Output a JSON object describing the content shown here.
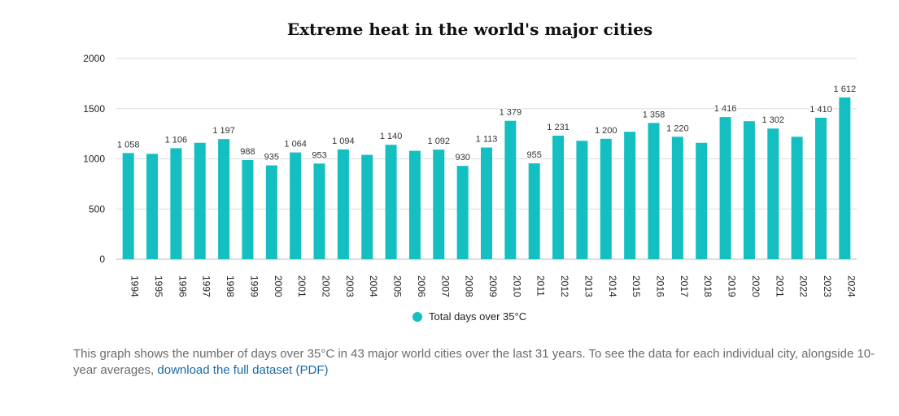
{
  "chart_data": {
    "type": "bar",
    "title": "Extreme heat in the world's major cities",
    "xlabel": "",
    "ylabel": "",
    "ylim": [
      0,
      2000
    ],
    "yticks": [
      "0",
      "500",
      "1000",
      "1500",
      "2000"
    ],
    "categories": [
      "1994",
      "1995",
      "1996",
      "1997",
      "1998",
      "1999",
      "2000",
      "2001",
      "2002",
      "2003",
      "2004",
      "2005",
      "2006",
      "2007",
      "2008",
      "2009",
      "2010",
      "2011",
      "2012",
      "2013",
      "2014",
      "2015",
      "2016",
      "2017",
      "2018",
      "2019",
      "2020",
      "2021",
      "2022",
      "2023",
      "2024"
    ],
    "values": [
      1058,
      1050,
      1106,
      1160,
      1197,
      988,
      935,
      1064,
      953,
      1094,
      1040,
      1140,
      1080,
      1092,
      930,
      1113,
      1379,
      955,
      1231,
      1180,
      1200,
      1270,
      1358,
      1220,
      1160,
      1416,
      1375,
      1302,
      1220,
      1410,
      1612
    ],
    "data_labels": [
      "1 058",
      "",
      "1 106",
      "",
      "1 197",
      "988",
      "935",
      "1 064",
      "953",
      "1 094",
      "",
      "1 140",
      "",
      "1 092",
      "930",
      "1 113",
      "1 379",
      "955",
      "1 231",
      "",
      "1 200",
      "",
      "1 358",
      "1 220",
      "",
      "1 416",
      "",
      "1 302",
      "",
      "1 410",
      "1 612"
    ],
    "series_name": "Total days over 35°C",
    "color": "#13bfc0",
    "grid": true,
    "legend_position": "bottom-center"
  },
  "caption": {
    "text": "This graph shows the number of days over 35°C in 43 major world cities over the last 31 years. To see the data for each individual city, alongside 10-year averages, ",
    "link_text": "download the full dataset (PDF)"
  }
}
